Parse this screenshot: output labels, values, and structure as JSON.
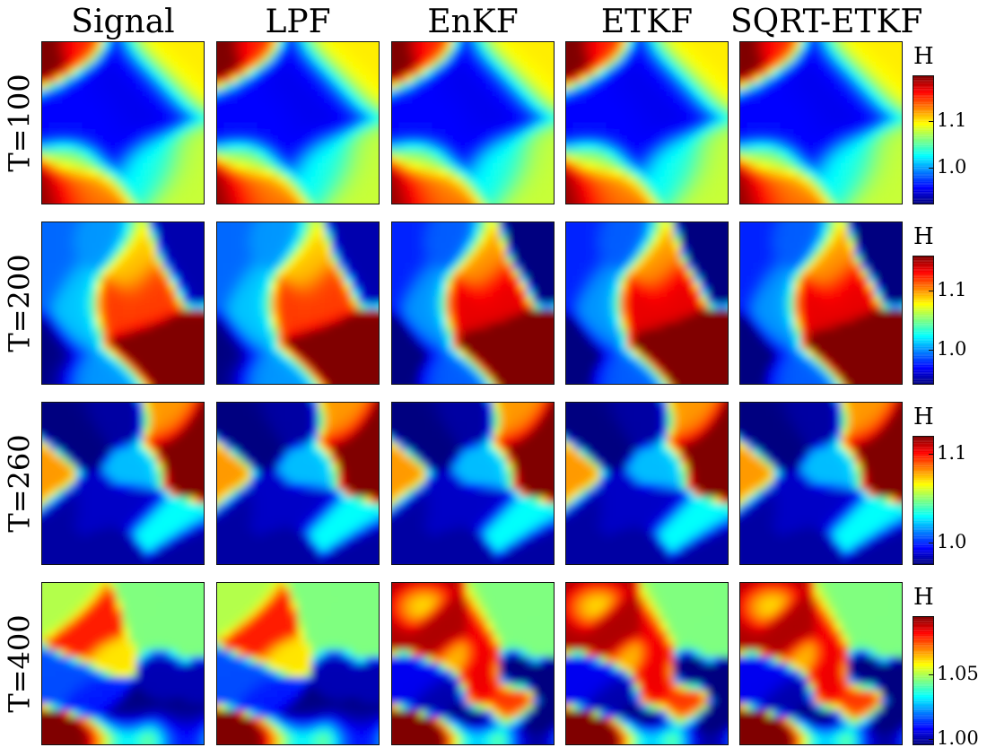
{
  "chart_data": {
    "type": "heatmap",
    "colormap": "jet",
    "columns": [
      "Signal",
      "LPF",
      "EnKF",
      "ETKF",
      "SQRT-ETKF"
    ],
    "colorbar_title": "H",
    "rows": [
      {
        "label": "T=100",
        "range": [
          0.92,
          1.2
        ],
        "ticks": [
          {
            "value": 1.0,
            "label": "1.0"
          },
          {
            "value": 1.1,
            "label": "1.1"
          }
        ],
        "features": [
          {
            "x": 0.42,
            "y": 0.45,
            "sx": 0.17,
            "sy": 0.15,
            "v": 0.95
          },
          {
            "x": 0.6,
            "y": 0.3,
            "sx": 0.12,
            "sy": 0.09,
            "v": 0.95
          },
          {
            "x": 0.3,
            "y": 0.5,
            "sx": 0.13,
            "sy": 0.12,
            "v": 0.96
          },
          {
            "x": 0.03,
            "y": 0.05,
            "sx": 0.1,
            "sy": 0.09,
            "v": 1.22
          },
          {
            "x": 0.18,
            "y": 0.03,
            "sx": 0.07,
            "sy": 0.06,
            "v": 1.15
          },
          {
            "x": 0.04,
            "y": 0.97,
            "sx": 0.14,
            "sy": 0.1,
            "v": 1.2
          },
          {
            "x": 0.22,
            "y": 0.93,
            "sx": 0.1,
            "sy": 0.1,
            "v": 1.12
          },
          {
            "x": 0.2,
            "y": 0.72,
            "sx": 0.08,
            "sy": 0.06,
            "v": 1.08
          },
          {
            "x": 0.85,
            "y": 0.15,
            "sx": 0.12,
            "sy": 0.1,
            "v": 1.1
          },
          {
            "x": 0.9,
            "y": 0.8,
            "sx": 0.1,
            "sy": 0.1,
            "v": 1.08
          },
          {
            "x": 0.7,
            "y": 0.75,
            "sx": 0.1,
            "sy": 0.08,
            "v": 1.03
          }
        ],
        "estimate_scale": [
          1.0,
          1.0,
          1.0,
          1.0,
          1.0
        ]
      },
      {
        "label": "T=200",
        "range": [
          0.94,
          1.16
        ],
        "ticks": [
          {
            "value": 1.0,
            "label": "1.0"
          },
          {
            "value": 1.1,
            "label": "1.1"
          }
        ],
        "features": [
          {
            "x": 0.82,
            "y": 0.78,
            "sx": 0.14,
            "sy": 0.07,
            "v": 1.17
          },
          {
            "x": 0.5,
            "y": 0.52,
            "sx": 0.09,
            "sy": 0.07,
            "v": 1.12
          },
          {
            "x": 0.64,
            "y": 0.45,
            "sx": 0.07,
            "sy": 0.08,
            "v": 1.12
          },
          {
            "x": 0.56,
            "y": 0.3,
            "sx": 0.06,
            "sy": 0.09,
            "v": 1.09
          },
          {
            "x": 0.05,
            "y": 0.88,
            "sx": 0.09,
            "sy": 0.1,
            "v": 0.94
          },
          {
            "x": 0.92,
            "y": 0.1,
            "sx": 0.07,
            "sy": 0.12,
            "v": 0.95
          },
          {
            "x": 0.05,
            "y": 0.15,
            "sx": 0.08,
            "sy": 0.14,
            "v": 0.99
          },
          {
            "x": 0.3,
            "y": 0.95,
            "sx": 0.1,
            "sy": 0.06,
            "v": 1.0
          },
          {
            "x": 0.22,
            "y": 0.55,
            "sx": 0.06,
            "sy": 0.12,
            "v": 1.01
          },
          {
            "x": 0.35,
            "y": 0.12,
            "sx": 0.08,
            "sy": 0.06,
            "v": 1.0
          }
        ],
        "estimate_scale": [
          1.0,
          1.0,
          1.25,
          1.25,
          1.25
        ]
      },
      {
        "label": "T=260",
        "range": [
          0.975,
          1.12
        ],
        "ticks": [
          {
            "value": 1.0,
            "label": "1.0"
          },
          {
            "value": 1.1,
            "label": "1.1"
          }
        ],
        "features": [
          {
            "x": 0.9,
            "y": 0.28,
            "sx": 0.09,
            "sy": 0.08,
            "v": 1.13
          },
          {
            "x": 0.78,
            "y": 0.12,
            "sx": 0.06,
            "sy": 0.07,
            "v": 1.08
          },
          {
            "x": 0.05,
            "y": 0.48,
            "sx": 0.05,
            "sy": 0.06,
            "v": 1.08
          },
          {
            "x": 0.25,
            "y": 0.2,
            "sx": 0.06,
            "sy": 0.06,
            "v": 0.975
          },
          {
            "x": 0.45,
            "y": 0.12,
            "sx": 0.08,
            "sy": 0.05,
            "v": 0.98
          },
          {
            "x": 0.3,
            "y": 0.65,
            "sx": 0.06,
            "sy": 0.06,
            "v": 0.985
          },
          {
            "x": 0.08,
            "y": 0.9,
            "sx": 0.06,
            "sy": 0.06,
            "v": 0.98
          },
          {
            "x": 0.4,
            "y": 0.93,
            "sx": 0.06,
            "sy": 0.06,
            "v": 0.98
          },
          {
            "x": 0.9,
            "y": 0.93,
            "sx": 0.06,
            "sy": 0.06,
            "v": 0.98
          },
          {
            "x": 0.55,
            "y": 0.65,
            "sx": 0.07,
            "sy": 0.05,
            "v": 0.985
          },
          {
            "x": 0.6,
            "y": 0.4,
            "sx": 0.06,
            "sy": 0.05,
            "v": 1.02
          },
          {
            "x": 0.15,
            "y": 0.65,
            "sx": 0.05,
            "sy": 0.05,
            "v": 0.98
          },
          {
            "x": 0.75,
            "y": 0.75,
            "sx": 0.07,
            "sy": 0.05,
            "v": 1.03
          }
        ],
        "estimate_scale": [
          1.0,
          1.0,
          1.0,
          1.0,
          1.0
        ]
      },
      {
        "label": "T=400",
        "range": [
          0.995,
          1.095
        ],
        "ticks": [
          {
            "value": 1.0,
            "label": "1.00"
          },
          {
            "value": 1.05,
            "label": "1.05"
          }
        ],
        "features": [
          {
            "x": 0.0,
            "y": 0.96,
            "sx": 0.45,
            "sy": 0.05,
            "v": 1.1
          },
          {
            "x": 0.28,
            "y": 0.33,
            "sx": 0.06,
            "sy": 0.06,
            "v": 1.08
          },
          {
            "x": 0.4,
            "y": 0.45,
            "sx": 0.05,
            "sy": 0.04,
            "v": 1.06
          },
          {
            "x": 0.5,
            "y": 0.94,
            "sx": 0.1,
            "sy": 0.07,
            "v": 0.995
          },
          {
            "x": 0.85,
            "y": 0.95,
            "sx": 0.1,
            "sy": 0.06,
            "v": 0.995
          },
          {
            "x": 0.75,
            "y": 0.55,
            "sx": 0.04,
            "sy": 0.05,
            "v": 1.0
          },
          {
            "x": 0.95,
            "y": 0.6,
            "sx": 0.04,
            "sy": 0.04,
            "v": 1.0
          },
          {
            "x": 0.15,
            "y": 0.6,
            "sx": 0.08,
            "sy": 0.05,
            "v": 1.015
          },
          {
            "x": 0.3,
            "y": 0.7,
            "sx": 0.06,
            "sy": 0.05,
            "v": 1.01
          },
          {
            "x": 0.1,
            "y": 0.15,
            "sx": 0.06,
            "sy": 0.05,
            "v": 1.05
          },
          {
            "x": 0.82,
            "y": 0.25,
            "sx": 0.08,
            "sy": 0.08,
            "v": 1.045
          }
        ],
        "estimate_scale": [
          1.0,
          1.0,
          1.3,
          1.3,
          1.3
        ],
        "estimate_extra": [
          {
            "x": 0.02,
            "y": 0.15,
            "sx": 0.08,
            "sy": 0.08,
            "v": 1.08
          },
          {
            "x": 0.55,
            "y": 0.55,
            "sx": 0.05,
            "sy": 0.1,
            "v": 1.075
          },
          {
            "x": 0.72,
            "y": 0.75,
            "sx": 0.05,
            "sy": 0.07,
            "v": 1.07
          }
        ]
      }
    ]
  }
}
